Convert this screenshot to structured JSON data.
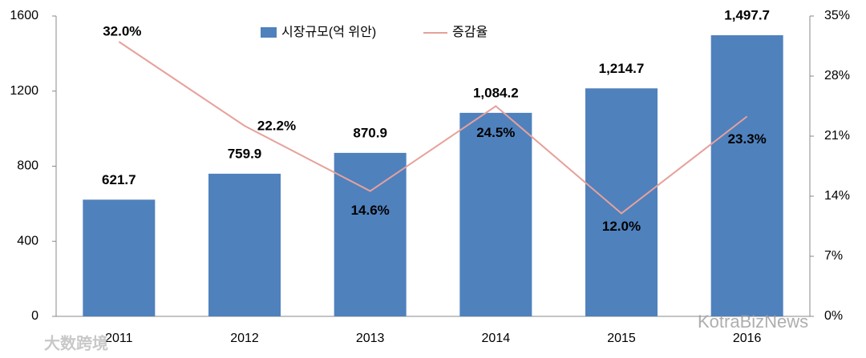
{
  "chart_data": {
    "type": "bar-line",
    "categories": [
      "2011",
      "2012",
      "2013",
      "2014",
      "2015",
      "2016"
    ],
    "series": [
      {
        "name": "시장규모(억 위안)",
        "type": "bar",
        "color": "#4f81bd",
        "axis": "y",
        "values": [
          621.7,
          759.9,
          870.9,
          1084.2,
          1214.7,
          1497.7
        ],
        "value_labels": [
          "621.7",
          "759.9",
          "870.9",
          "1,084.2",
          "1,214.7",
          "1,497.7"
        ]
      },
      {
        "name": "증감율",
        "type": "line",
        "color": "#e6a19b",
        "axis": "y2",
        "values": [
          32.0,
          22.2,
          14.6,
          24.5,
          12.0,
          23.3
        ],
        "value_labels": [
          "32.0%",
          "22.2%",
          "14.6%",
          "24.5%",
          "12.0%",
          "23.3%"
        ]
      }
    ],
    "ylim": [
      0,
      1600
    ],
    "yticks": [
      0,
      400,
      800,
      1200,
      1600
    ],
    "y2lim": [
      0,
      35
    ],
    "y2ticks": [
      {
        "value": 0,
        "label": "0%"
      },
      {
        "value": 7,
        "label": "7%"
      },
      {
        "value": 14,
        "label": "14%"
      },
      {
        "value": 21,
        "label": "21%"
      },
      {
        "value": 28,
        "label": "28%"
      },
      {
        "value": 35,
        "label": "35%"
      }
    ],
    "legend": "top",
    "grid": false,
    "watermarks": [
      "KotraBizNews",
      "大数跨境"
    ]
  }
}
